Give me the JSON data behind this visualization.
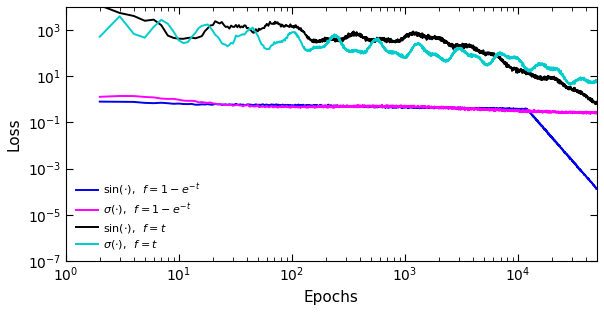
{
  "title": "",
  "xlabel": "Epochs",
  "ylabel": "Loss",
  "xlim": [
    1,
    50000
  ],
  "ylim": [
    1e-07,
    10000.0
  ],
  "legend": [
    {
      "label": "$\\sin(\\cdot),\\;\\; f=1-e^{-t}$",
      "color": "#0000EE"
    },
    {
      "label": "$\\sigma(\\cdot),\\;\\; f=1-e^{-t}$",
      "color": "#FF00FF"
    },
    {
      "label": "$\\sin(\\cdot),\\;\\; f=t$",
      "color": "#000000"
    },
    {
      "label": "$\\sigma(\\cdot),\\;\\; f=t$",
      "color": "#00CCCC"
    }
  ],
  "n_epochs": 50000
}
